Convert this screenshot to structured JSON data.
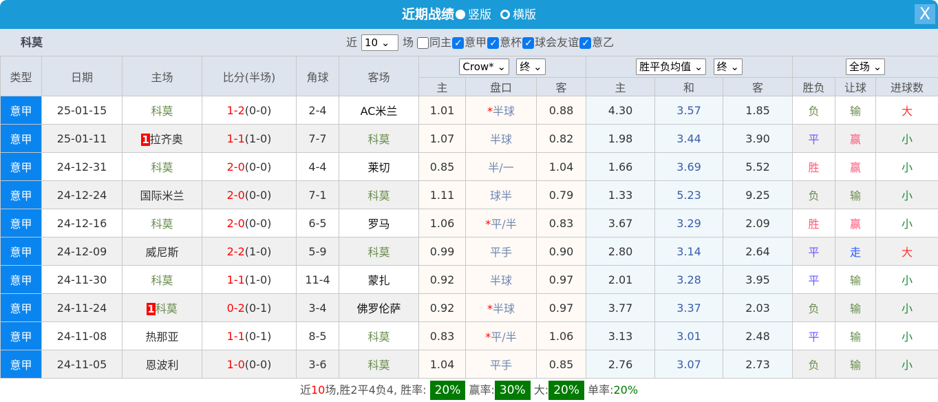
{
  "title": "近期战绩",
  "view_options": [
    {
      "label": "竖版",
      "selected": true
    },
    {
      "label": "横版",
      "selected": false
    }
  ],
  "close_label": "X",
  "filter": {
    "team": "科莫",
    "recent_prefix": "近",
    "recent_count": "10",
    "recent_suffix": "场",
    "checkboxes": [
      {
        "label": "同主",
        "checked": false
      },
      {
        "label": "意甲",
        "checked": true
      },
      {
        "label": "意杯",
        "checked": true
      },
      {
        "label": "球会友谊",
        "checked": true
      },
      {
        "label": "意乙",
        "checked": true
      }
    ]
  },
  "headers": {
    "type": "类型",
    "date": "日期",
    "home": "主场",
    "score": "比分(半场)",
    "corner": "角球",
    "away": "客场",
    "company": "Crow*",
    "company_stage": "终",
    "avg": "胜平负均值",
    "avg_stage": "终",
    "scope": "全场",
    "sub": [
      "主",
      "盘口",
      "客",
      "主",
      "和",
      "客",
      "胜负",
      "让球",
      "进球数"
    ]
  },
  "rows": [
    {
      "type": "意甲",
      "date": "25-01-15",
      "home": "科莫",
      "home_card": "",
      "score": "1-2",
      "half": "(0-0)",
      "corner": "2-4",
      "away": "AC米兰",
      "h": "1.01",
      "hc_star": "*",
      "hc": "半球",
      "a": "0.88",
      "w": "4.30",
      "d": "3.57",
      "l": "1.85",
      "res": "负",
      "hr": "输",
      "ou": "大"
    },
    {
      "type": "意甲",
      "date": "25-01-11",
      "home": "拉齐奥",
      "home_card": "1",
      "score": "1-1",
      "half": "(1-0)",
      "corner": "7-7",
      "away": "科莫",
      "h": "1.07",
      "hc_star": "",
      "hc": "半球",
      "a": "0.82",
      "w": "1.98",
      "d": "3.44",
      "l": "3.90",
      "res": "平",
      "hr": "赢",
      "ou": "小"
    },
    {
      "type": "意甲",
      "date": "24-12-31",
      "home": "科莫",
      "home_card": "",
      "score": "2-0",
      "half": "(0-0)",
      "corner": "4-4",
      "away": "莱切",
      "h": "0.85",
      "hc_star": "",
      "hc": "半/一",
      "a": "1.04",
      "w": "1.66",
      "d": "3.69",
      "l": "5.52",
      "res": "胜",
      "hr": "赢",
      "ou": "小"
    },
    {
      "type": "意甲",
      "date": "24-12-24",
      "home": "国际米兰",
      "home_card": "",
      "score": "2-0",
      "half": "(0-0)",
      "corner": "7-1",
      "away": "科莫",
      "h": "1.11",
      "hc_star": "",
      "hc": "球半",
      "a": "0.79",
      "w": "1.33",
      "d": "5.23",
      "l": "9.25",
      "res": "负",
      "hr": "输",
      "ou": "小"
    },
    {
      "type": "意甲",
      "date": "24-12-16",
      "home": "科莫",
      "home_card": "",
      "score": "2-0",
      "half": "(0-0)",
      "corner": "6-5",
      "away": "罗马",
      "h": "1.06",
      "hc_star": "*",
      "hc": "平/半",
      "a": "0.83",
      "w": "3.67",
      "d": "3.29",
      "l": "2.09",
      "res": "胜",
      "hr": "赢",
      "ou": "小"
    },
    {
      "type": "意甲",
      "date": "24-12-09",
      "home": "威尼斯",
      "home_card": "",
      "score": "2-2",
      "half": "(1-0)",
      "corner": "5-9",
      "away": "科莫",
      "h": "0.99",
      "hc_star": "",
      "hc": "平手",
      "a": "0.90",
      "w": "2.80",
      "d": "3.14",
      "l": "2.64",
      "res": "平",
      "hr": "走",
      "ou": "大"
    },
    {
      "type": "意甲",
      "date": "24-11-30",
      "home": "科莫",
      "home_card": "",
      "score": "1-1",
      "half": "(1-0)",
      "corner": "11-4",
      "away": "蒙扎",
      "h": "0.92",
      "hc_star": "",
      "hc": "半球",
      "a": "0.97",
      "w": "2.01",
      "d": "3.28",
      "l": "3.95",
      "res": "平",
      "hr": "输",
      "ou": "小"
    },
    {
      "type": "意甲",
      "date": "24-11-24",
      "home": "科莫",
      "home_card": "1",
      "score": "0-2",
      "half": "(0-1)",
      "corner": "3-4",
      "away": "佛罗伦萨",
      "h": "0.92",
      "hc_star": "*",
      "hc": "半球",
      "a": "0.97",
      "w": "3.77",
      "d": "3.37",
      "l": "2.03",
      "res": "负",
      "hr": "输",
      "ou": "小"
    },
    {
      "type": "意甲",
      "date": "24-11-08",
      "home": "热那亚",
      "home_card": "",
      "score": "1-1",
      "half": "(0-1)",
      "corner": "8-5",
      "away": "科莫",
      "h": "0.83",
      "hc_star": "*",
      "hc": "平/半",
      "a": "1.06",
      "w": "3.13",
      "d": "3.01",
      "l": "2.48",
      "res": "平",
      "hr": "输",
      "ou": "小"
    },
    {
      "type": "意甲",
      "date": "24-11-05",
      "home": "恩波利",
      "home_card": "",
      "score": "1-0",
      "half": "(0-0)",
      "corner": "3-6",
      "away": "科莫",
      "h": "1.04",
      "hc_star": "",
      "hc": "平手",
      "a": "0.85",
      "w": "2.76",
      "d": "3.07",
      "l": "2.73",
      "res": "负",
      "hr": "输",
      "ou": "小"
    }
  ],
  "footer": {
    "p1": "近",
    "count": "10",
    "p2": "场,胜2平4负4, 胜率:",
    "win_rate": "20%",
    "p3": "赢率:",
    "cover_rate": "30%",
    "p4": "大:",
    "over_rate": "20%",
    "p5": "单率:",
    "odd_rate": "20%"
  },
  "colors": {
    "title_bar": "#1a9ad6",
    "type_cell": "#0a85ef",
    "rate_pill": "#007a00",
    "focus_team": "#6b8e4e"
  }
}
